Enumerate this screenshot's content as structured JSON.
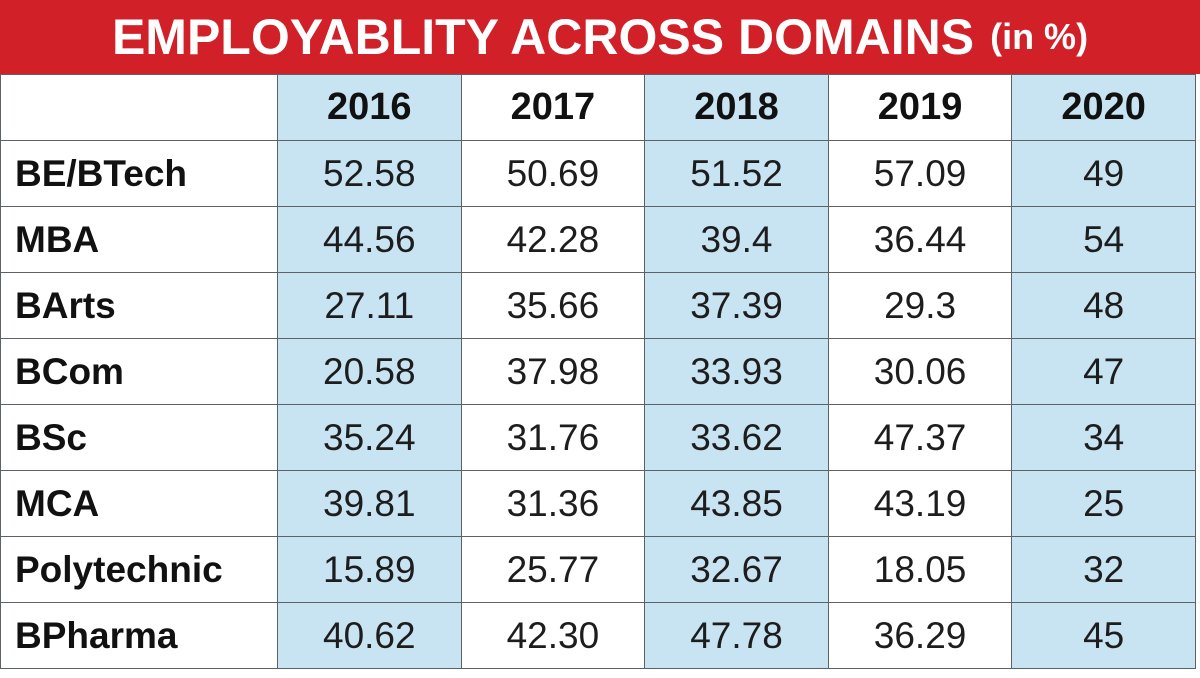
{
  "header": {
    "title": "EMPLOYABLITY ACROSS DOMAINS",
    "unit": "(in %)",
    "background_color": "#d12028",
    "text_color": "#ffffff"
  },
  "colors": {
    "shaded_column": "#c8e4f3",
    "grid_line": "#5d6266"
  },
  "chart_data": {
    "type": "table",
    "title": "EMPLOYABLITY ACROSS DOMAINS",
    "unit": "(in %)",
    "columns": [
      "2016",
      "2017",
      "2018",
      "2019",
      "2020"
    ],
    "rows": [
      {
        "label": "BE/BTech",
        "values": [
          "52.58",
          "50.69",
          "51.52",
          "57.09",
          "49"
        ]
      },
      {
        "label": "MBA",
        "values": [
          "44.56",
          "42.28",
          "39.4",
          "36.44",
          "54"
        ]
      },
      {
        "label": "BArts",
        "values": [
          "27.11",
          "35.66",
          "37.39",
          "29.3",
          "48"
        ]
      },
      {
        "label": "BCom",
        "values": [
          "20.58",
          "37.98",
          "33.93",
          "30.06",
          "47"
        ]
      },
      {
        "label": "BSc",
        "values": [
          "35.24",
          "31.76",
          "33.62",
          "47.37",
          "34"
        ]
      },
      {
        "label": "MCA",
        "values": [
          "39.81",
          "31.36",
          "43.85",
          "43.19",
          "25"
        ]
      },
      {
        "label": "Polytechnic",
        "values": [
          "15.89",
          "25.77",
          "32.67",
          "18.05",
          "32"
        ]
      },
      {
        "label": "BPharma",
        "values": [
          "40.62",
          "42.30",
          "47.78",
          "36.29",
          "45"
        ]
      }
    ],
    "shaded_columns": [
      "2016",
      "2018",
      "2020"
    ]
  }
}
